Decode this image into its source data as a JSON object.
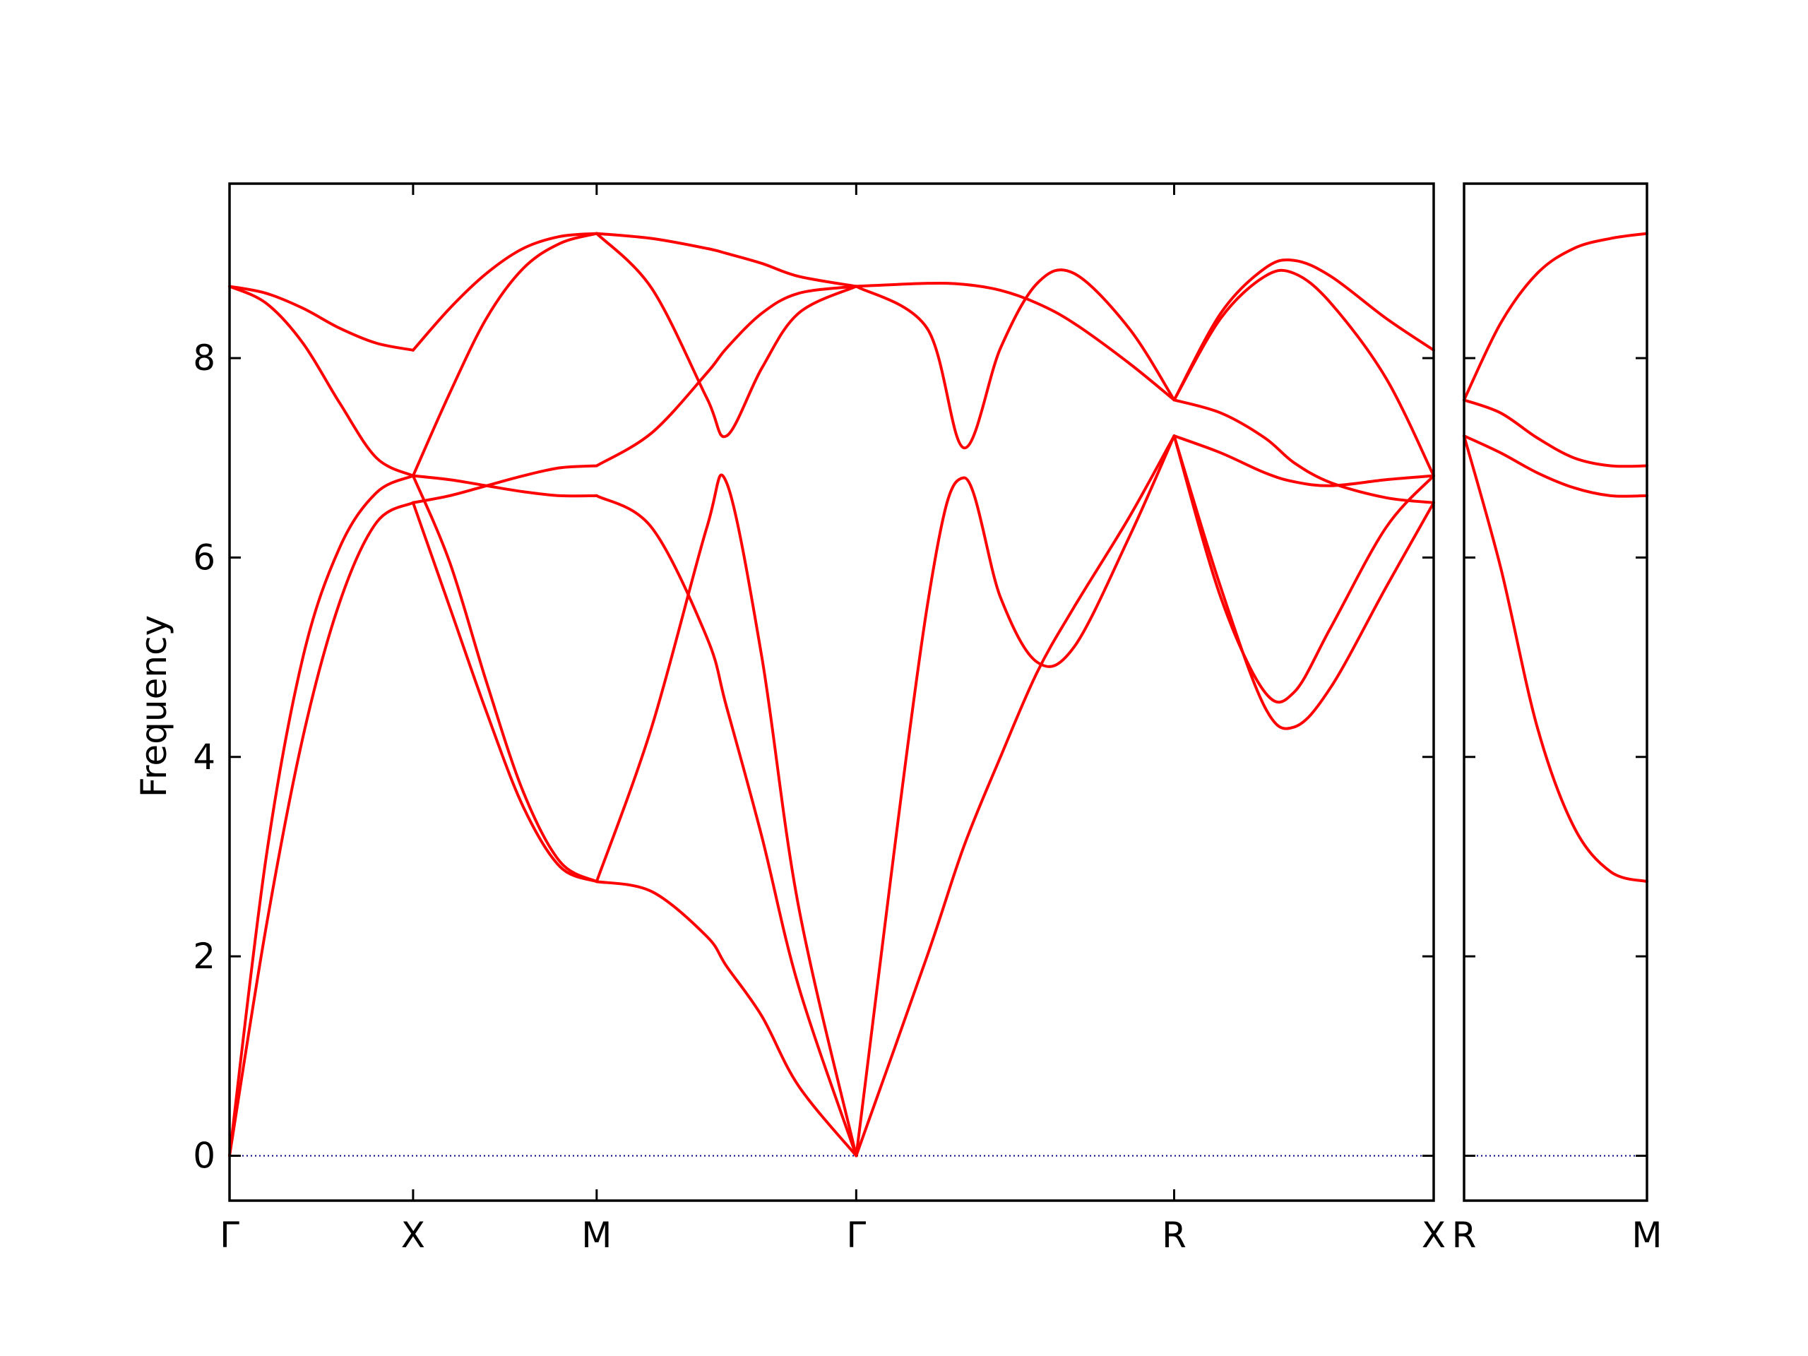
{
  "chart_data": {
    "type": "line",
    "ylabel": "Frequency",
    "xlabel": "",
    "ylim": [
      -0.45,
      9.75
    ],
    "yticks": [
      0,
      2,
      4,
      6,
      8
    ],
    "grid": false,
    "legend": "none",
    "line_color": "#ff0000",
    "zero_line_color": "#00008b",
    "panels": [
      {
        "name": "main",
        "x_points": [
          {
            "label": "Γ",
            "x": 0.0
          },
          {
            "label": "X",
            "x": 0.5
          },
          {
            "label": "M",
            "x": 1.0
          },
          {
            "label": "Γ",
            "x": 1.707
          },
          {
            "label": "R",
            "x": 2.573
          },
          {
            "label": "X",
            "x": 3.28
          }
        ],
        "xlim": [
          0.0,
          3.28
        ],
        "segments": [
          {
            "from": "Γ",
            "to": "X",
            "x": [
              0.0,
              0.1,
              0.2,
              0.3,
              0.4,
              0.5
            ],
            "bands": [
              [
                0.0,
                2.3,
                4.2,
                5.55,
                6.35,
                6.55
              ],
              [
                0.0,
                3.0,
                5.0,
                6.1,
                6.65,
                6.82
              ],
              [
                8.72,
                8.55,
                8.15,
                7.55,
                7.0,
                6.82
              ],
              [
                8.72,
                8.65,
                8.5,
                8.3,
                8.15,
                8.08
              ]
            ]
          },
          {
            "from": "X",
            "to": "M",
            "x": [
              0.5,
              0.6,
              0.7,
              0.8,
              0.9,
              1.0
            ],
            "bands": [
              [
                6.55,
                5.5,
                4.45,
                3.5,
                2.9,
                2.75
              ],
              [
                6.82,
                5.95,
                4.75,
                3.65,
                2.95,
                2.75
              ],
              [
                6.55,
                6.62,
                6.72,
                6.82,
                6.9,
                6.92
              ],
              [
                6.82,
                6.78,
                6.72,
                6.66,
                6.62,
                6.62
              ],
              [
                6.82,
                7.65,
                8.4,
                8.9,
                9.15,
                9.25
              ],
              [
                8.08,
                8.5,
                8.85,
                9.1,
                9.22,
                9.25
              ]
            ]
          },
          {
            "from": "M",
            "to": "Γ",
            "x": [
              1.0,
              1.15,
              1.3,
              1.354,
              1.45,
              1.55,
              1.707
            ],
            "bands": [
              [
                2.75,
                2.65,
                2.2,
                1.9,
                1.4,
                0.7,
                0.0
              ],
              [
                2.75,
                4.3,
                6.3,
                6.75,
                5.0,
                2.5,
                0.0
              ],
              [
                6.62,
                6.3,
                5.2,
                4.5,
                3.2,
                1.7,
                0.0
              ],
              [
                6.92,
                7.25,
                7.85,
                8.1,
                8.45,
                8.65,
                8.72
              ],
              [
                9.25,
                8.7,
                7.6,
                7.22,
                7.9,
                8.45,
                8.72
              ],
              [
                9.25,
                9.2,
                9.1,
                9.05,
                8.95,
                8.82,
                8.72
              ]
            ]
          },
          {
            "from": "Γ",
            "to": "R",
            "x": [
              1.707,
              1.9,
              2.0,
              2.1,
              2.2,
              2.3,
              2.45,
              2.573
            ],
            "bands": [
              [
                0.0,
                2.0,
                3.1,
                4.0,
                4.85,
                5.5,
                6.4,
                7.22
              ],
              [
                0.0,
                5.5,
                6.8,
                5.6,
                4.95,
                5.1,
                6.2,
                7.22
              ],
              [
                8.72,
                8.75,
                8.74,
                8.68,
                8.55,
                8.35,
                7.95,
                7.58
              ],
              [
                8.72,
                8.3,
                7.1,
                8.1,
                8.75,
                8.85,
                8.3,
                7.58
              ]
            ]
          },
          {
            "from": "R",
            "to": "X",
            "x": [
              2.573,
              2.7,
              2.82,
              2.9,
              3.0,
              3.15,
              3.28
            ],
            "bands": [
              [
                7.22,
                5.7,
                4.5,
                4.3,
                4.7,
                5.7,
                6.55
              ],
              [
                7.22,
                5.6,
                4.65,
                4.65,
                5.3,
                6.3,
                6.82
              ],
              [
                7.22,
                7.05,
                6.85,
                6.76,
                6.72,
                6.78,
                6.82
              ],
              [
                7.58,
                7.45,
                7.2,
                6.95,
                6.75,
                6.6,
                6.55
              ],
              [
                7.58,
                8.45,
                8.9,
                8.98,
                8.82,
                8.4,
                8.08
              ],
              [
                7.58,
                8.4,
                8.82,
                8.85,
                8.55,
                7.8,
                6.82
              ]
            ]
          }
        ]
      },
      {
        "name": "right",
        "x_points": [
          {
            "label": "R",
            "x": 0.0
          },
          {
            "label": "M",
            "x": 0.5
          }
        ],
        "xlim": [
          0.0,
          0.5
        ],
        "segments": [
          {
            "from": "R",
            "to": "M",
            "x": [
              0.0,
              0.1,
              0.2,
              0.3,
              0.4,
              0.5
            ],
            "bands": [
              [
                7.58,
                8.35,
                8.85,
                9.1,
                9.2,
                9.25
              ],
              [
                7.58,
                7.45,
                7.2,
                7.0,
                6.92,
                6.92
              ],
              [
                7.22,
                7.05,
                6.85,
                6.7,
                6.62,
                6.62
              ],
              [
                7.22,
                5.9,
                4.3,
                3.3,
                2.85,
                2.75
              ]
            ]
          }
        ]
      }
    ]
  }
}
